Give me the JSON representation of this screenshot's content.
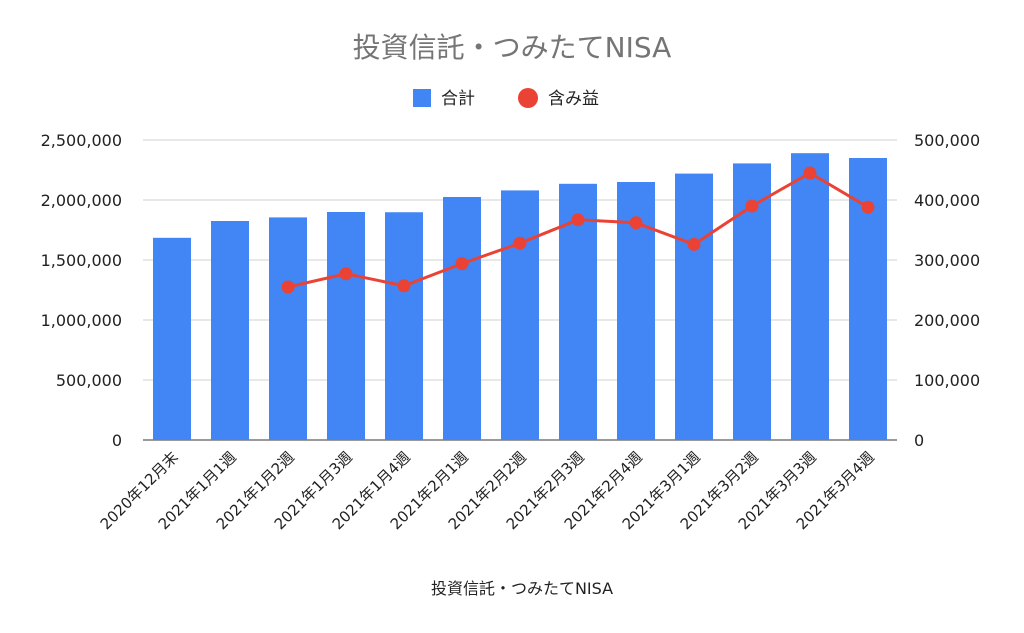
{
  "chart_data": {
    "type": "bar",
    "title": "投資信託・つみたてNISA",
    "xlabel": "投資信託・つみたてNISA",
    "categories": [
      "2020年12月末",
      "2021年1月1週",
      "2021年1月2週",
      "2021年1月3週",
      "2021年1月4週",
      "2021年2月1週",
      "2021年2月2週",
      "2021年2月3週",
      "2021年2月4週",
      "2021年3月1週",
      "2021年3月2週",
      "2021年3月3週",
      "2021年3月4週"
    ],
    "series": [
      {
        "name": "合計",
        "type": "bar",
        "axis": "left",
        "color": "#4285f4",
        "values": [
          1685000,
          1825000,
          1855000,
          1900000,
          1898000,
          2025000,
          2080000,
          2135000,
          2150000,
          2220000,
          2305000,
          2390000,
          2350000
        ]
      },
      {
        "name": "含み益",
        "type": "line",
        "axis": "right",
        "color": "#ea4335",
        "values": [
          null,
          null,
          255000,
          277000,
          257000,
          294000,
          328000,
          367000,
          362000,
          326000,
          390000,
          445000,
          388000
        ]
      }
    ],
    "ylim_left": [
      0,
      2500000
    ],
    "ylim_right": [
      0,
      500000
    ],
    "yticks_left": [
      "0",
      "500,000",
      "1,000,000",
      "1,500,000",
      "2,000,000",
      "2,500,000"
    ],
    "yticks_right": [
      "0",
      "100,000",
      "200,000",
      "300,000",
      "400,000",
      "500,000"
    ],
    "legend_position": "top",
    "grid": true
  }
}
